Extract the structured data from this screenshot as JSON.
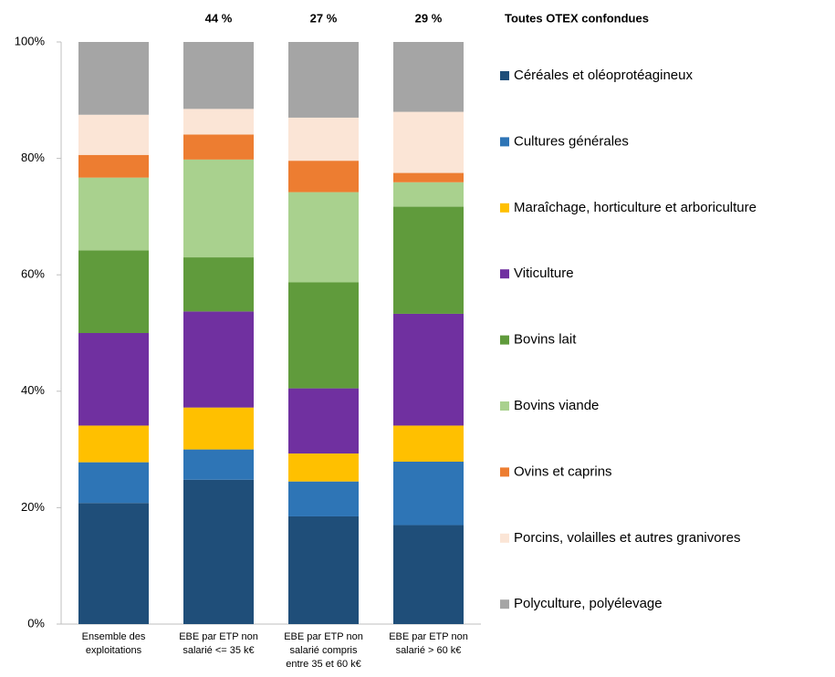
{
  "chart_data": {
    "type": "stacked_bar",
    "legend_title": "Toutes OTEX confondues",
    "categories": [
      "Ensemble des\nexploitations",
      "EBE par ETP non\nsalarié <= 35 k€",
      "EBE par ETP non\nsalarié compris\nentre 35 et 60 k€",
      "EBE par ETP non\nsalarié > 60 k€"
    ],
    "bar_annotations": [
      null,
      "44 %",
      "27 %",
      "29 %"
    ],
    "series": [
      {
        "name": "Céréales et oléoprotéagineux",
        "color": "#1f4e79",
        "values": [
          20.8,
          24.8,
          18.5,
          17.0
        ]
      },
      {
        "name": "Cultures générales",
        "color": "#2e75b6",
        "values": [
          7.0,
          5.2,
          6.0,
          10.9
        ]
      },
      {
        "name": "Maraîchage, horticulture et arboriculture",
        "color": "#ffc000",
        "values": [
          6.3,
          7.2,
          4.8,
          6.2
        ]
      },
      {
        "name": "Viticulture",
        "color": "#7030a0",
        "values": [
          15.9,
          16.5,
          11.2,
          19.2
        ]
      },
      {
        "name": "Bovins lait",
        "color": "#609b3c",
        "values": [
          14.2,
          9.3,
          18.2,
          18.4
        ]
      },
      {
        "name": "Bovins viande",
        "color": "#a9d18e",
        "values": [
          12.5,
          16.8,
          15.5,
          4.2
        ]
      },
      {
        "name": "Ovins et caprins",
        "color": "#ed7d31",
        "values": [
          3.9,
          4.3,
          5.4,
          1.6
        ]
      },
      {
        "name": "Porcins, volailles et autres granivores",
        "color": "#fbe5d6",
        "values": [
          6.9,
          4.4,
          7.4,
          10.5
        ]
      },
      {
        "name": "Polyculture, polyélevage",
        "color": "#a5a5a5",
        "values": [
          12.5,
          11.5,
          13.0,
          12.0
        ]
      }
    ],
    "ylim": [
      0,
      100
    ],
    "yticks": [
      {
        "value": 0,
        "label": "0%"
      },
      {
        "value": 20,
        "label": "20%"
      },
      {
        "value": 40,
        "label": "40%"
      },
      {
        "value": 60,
        "label": "60%"
      },
      {
        "value": 80,
        "label": "80%"
      },
      {
        "value": 100,
        "label": "100%"
      }
    ],
    "grid": false,
    "legend": "right"
  }
}
